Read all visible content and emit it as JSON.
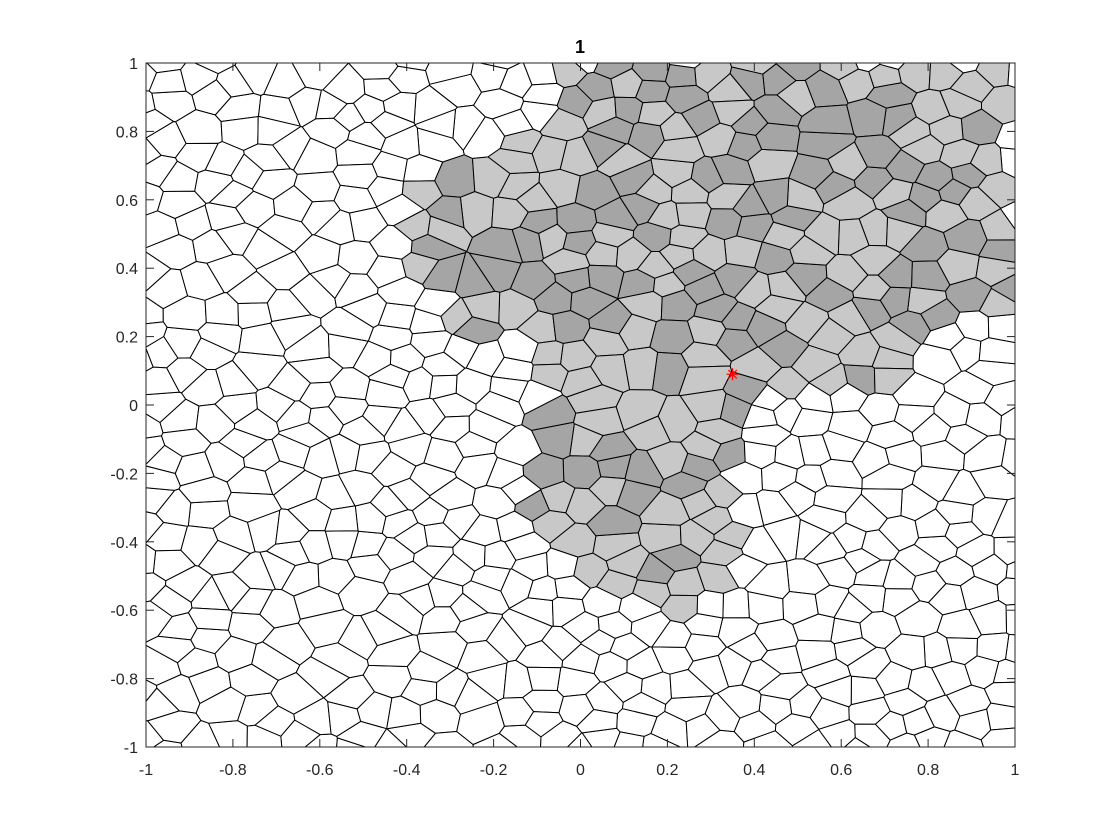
{
  "chart_data": {
    "type": "voronoi",
    "title": "1",
    "xlim": [
      -1,
      1
    ],
    "ylim": [
      -1,
      1
    ],
    "x_ticks": [
      "-1",
      "-0.8",
      "-0.6",
      "-0.4",
      "-0.2",
      "0",
      "0.2",
      "0.4",
      "0.6",
      "0.8",
      "1"
    ],
    "y_ticks": [
      "-1",
      "-0.8",
      "-0.6",
      "-0.4",
      "-0.2",
      "0",
      "0.2",
      "0.4",
      "0.6",
      "0.8",
      "1"
    ],
    "grid": false,
    "marker": {
      "x": 0.35,
      "y": 0.09,
      "symbol": "*",
      "color": "#ff0000"
    },
    "region_colors": {
      "light": "#c8c8c8",
      "dark": "#a5a5a5",
      "empty": "#ffffff",
      "edge": "#000000"
    }
  }
}
